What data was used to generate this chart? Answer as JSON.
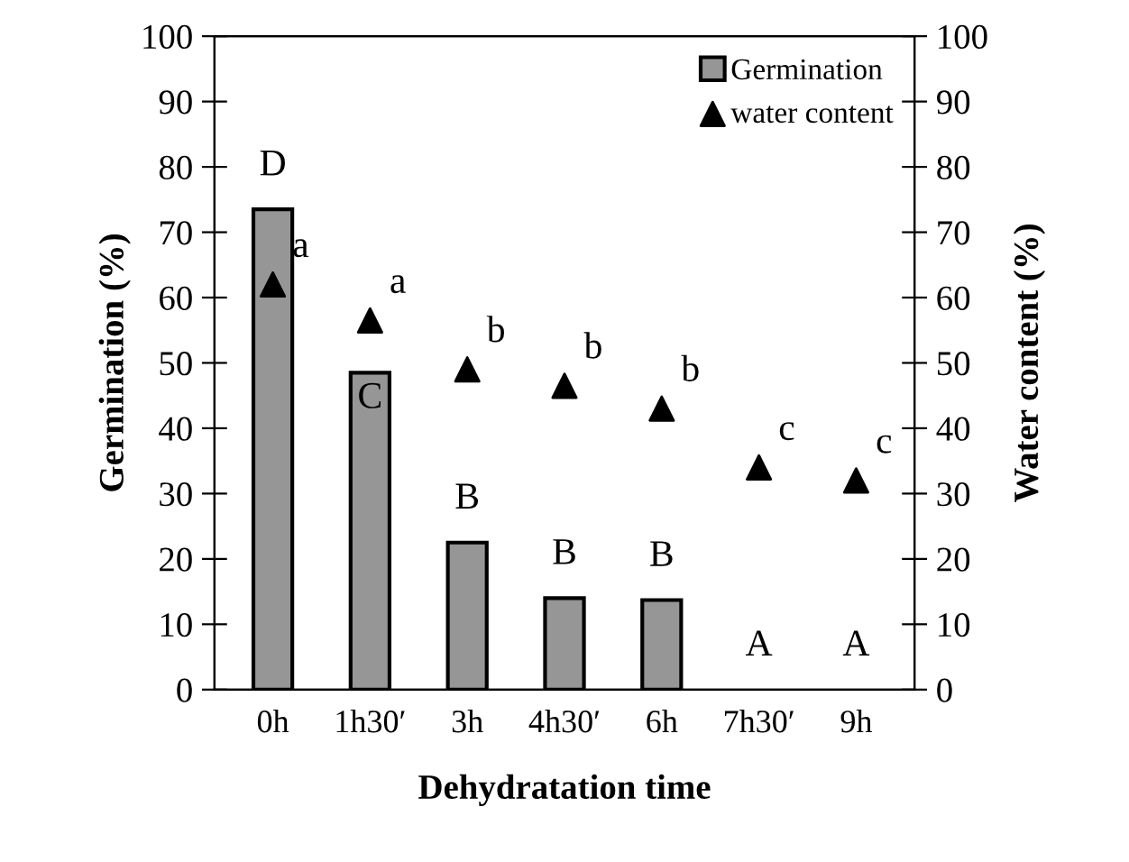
{
  "chart_data": {
    "type": "bar",
    "xlabel": "Dehydratation time",
    "ylabel": "Germination (%)",
    "y2label": "Water content (%)",
    "categories": [
      "0h",
      "1h30′",
      "3h",
      "4h30′",
      "6h",
      "7h30′",
      "9h"
    ],
    "series": [
      {
        "name": "Germination",
        "color": "#969696",
        "values": [
          73.5,
          48.5,
          22.5,
          14,
          13.7,
          0,
          0
        ]
      },
      {
        "name": "water content",
        "type": "scatter",
        "marker": "triangle",
        "color": "#000000",
        "values": [
          62,
          56.5,
          49,
          46.5,
          43,
          34,
          32
        ]
      }
    ],
    "ylim": [
      0,
      100
    ],
    "yticks": [
      0,
      10,
      20,
      30,
      40,
      50,
      60,
      70,
      80,
      90,
      100
    ],
    "y2lim": [
      0,
      100
    ],
    "y2ticks": [
      0,
      10,
      20,
      30,
      40,
      50,
      60,
      70,
      80,
      90,
      100
    ],
    "grid": false,
    "legend": "top right",
    "annotations": [
      "D",
      "a",
      "C",
      "a",
      "B",
      "b",
      "B",
      "b",
      "B",
      "b",
      "A",
      "c",
      "A",
      "c"
    ]
  }
}
